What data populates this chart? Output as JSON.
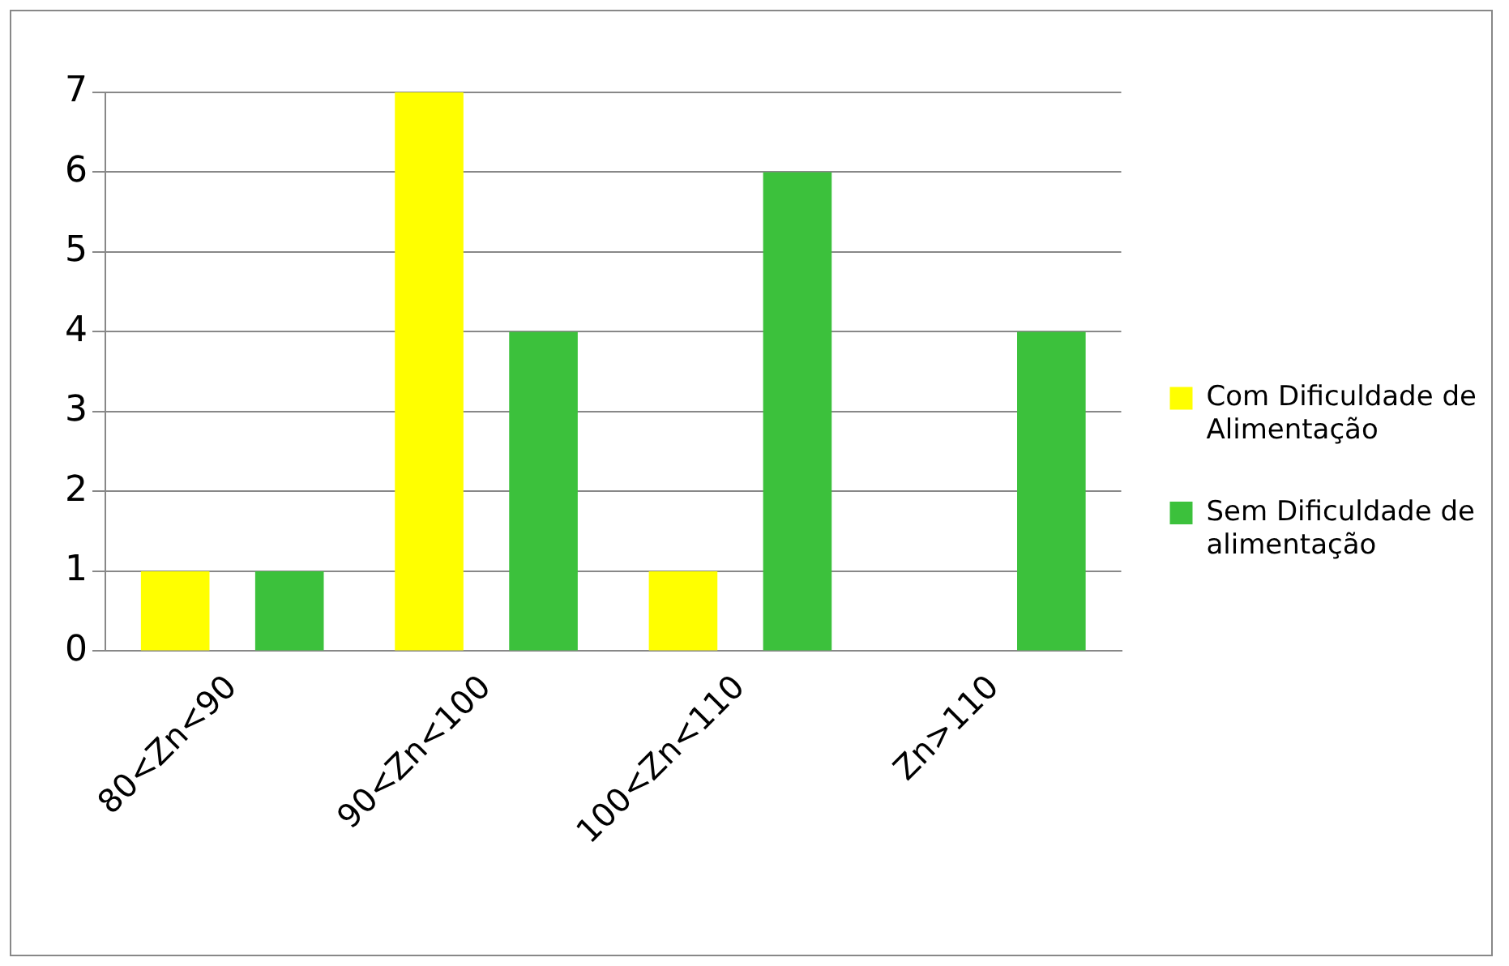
{
  "chart_data": {
    "type": "bar",
    "categories": [
      "80<Zn<90",
      "90<Zn<100",
      "100<Zn<110",
      "Zn>110"
    ],
    "series": [
      {
        "name": "Com Dificuldade de Alimentação",
        "color": "#ffff00",
        "values": [
          1,
          7,
          1,
          0
        ]
      },
      {
        "name": "Sem Dificuldade de alimentação",
        "color": "#3cc13c",
        "values": [
          1,
          4,
          6,
          4
        ]
      }
    ],
    "ylim": [
      0,
      7
    ],
    "yticks": [
      0,
      1,
      2,
      3,
      4,
      5,
      6,
      7
    ],
    "grid": "y",
    "legend": "right"
  }
}
